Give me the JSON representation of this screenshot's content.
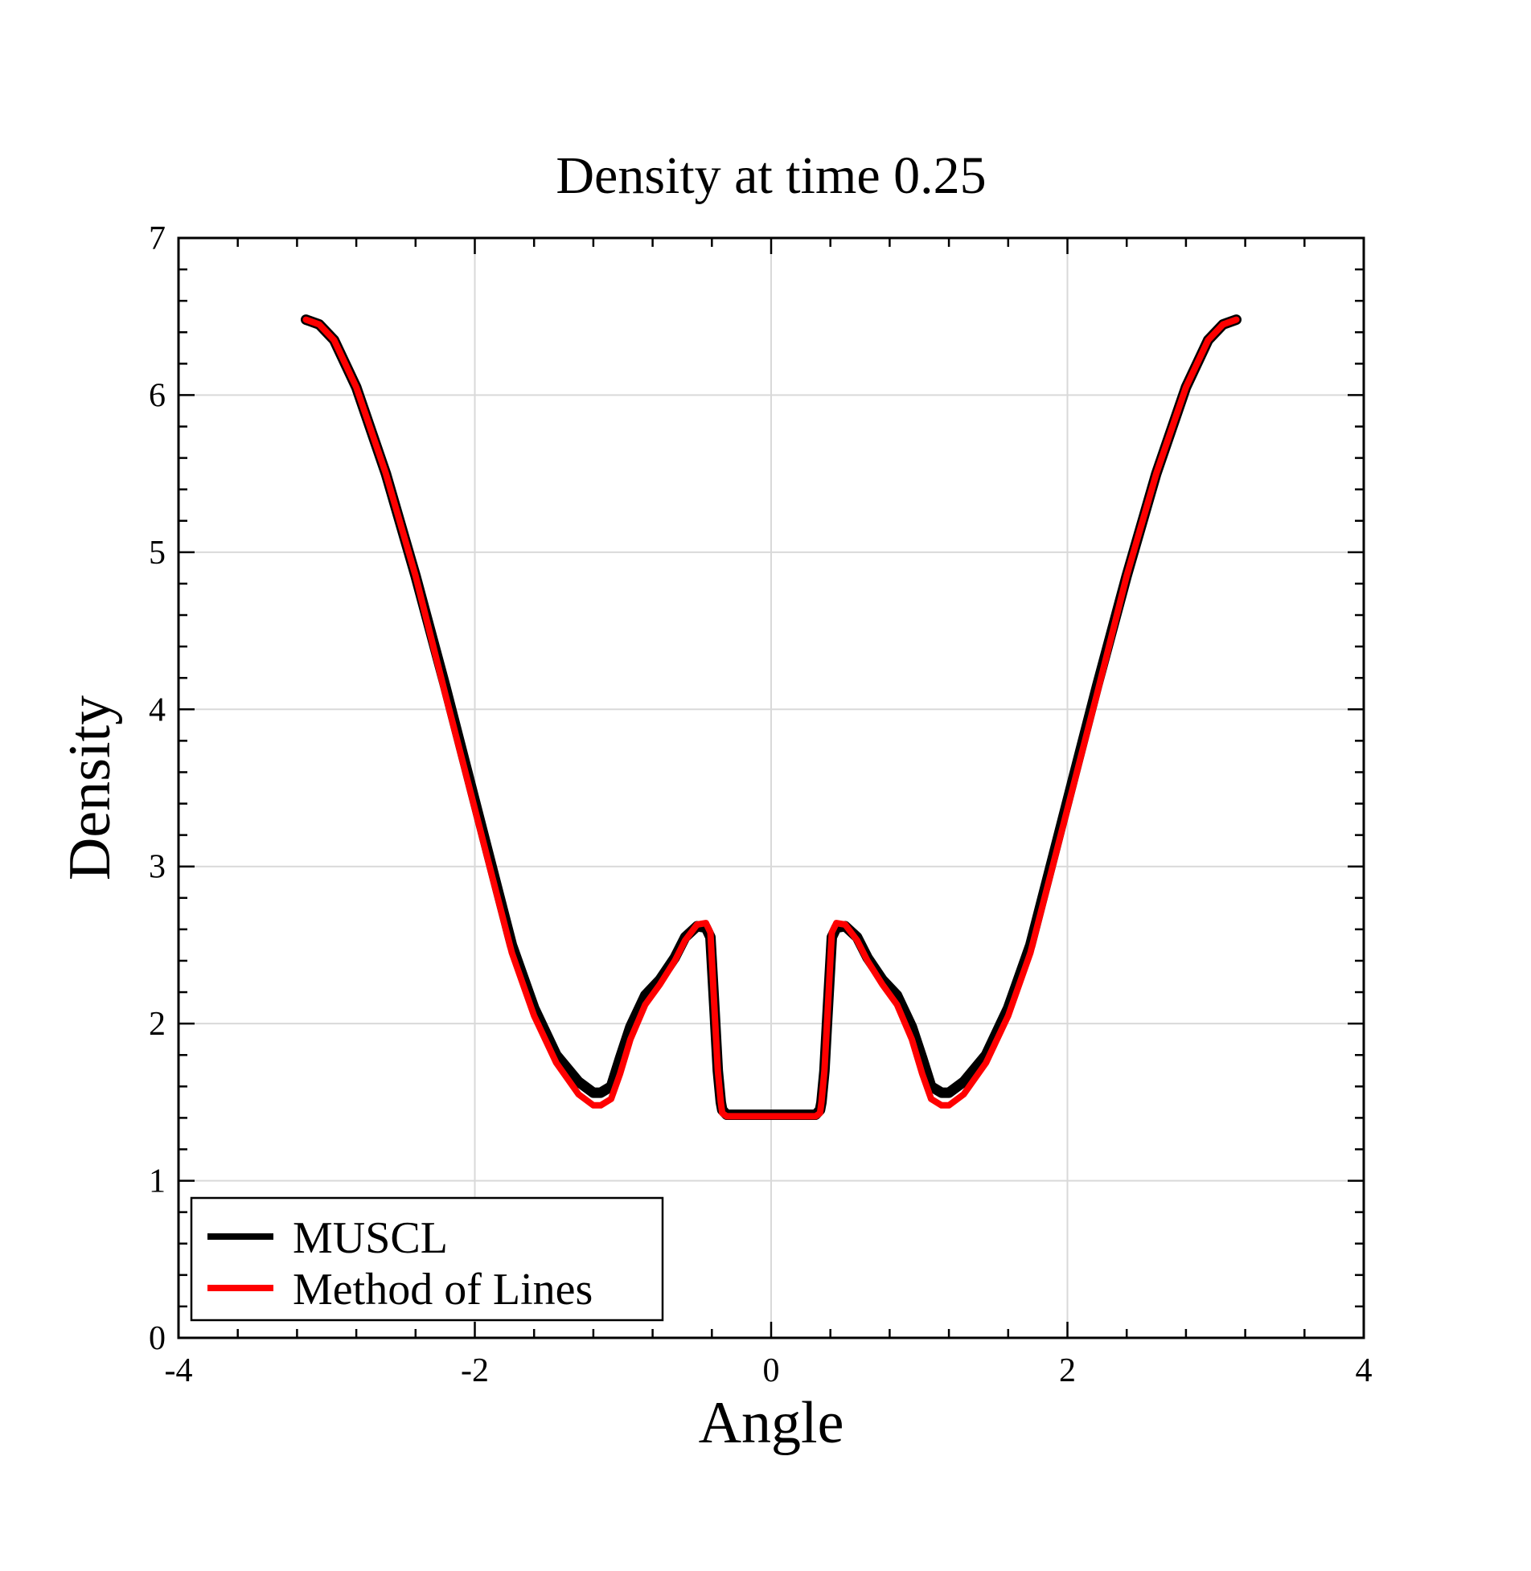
{
  "chart_data": {
    "type": "line",
    "title": "Density at time 0.25",
    "xlabel": "Angle",
    "ylabel": "Density",
    "xlim": [
      -4,
      4
    ],
    "ylim": [
      0,
      7
    ],
    "x_major_ticks": [
      -4,
      -2,
      0,
      2,
      4
    ],
    "x_tick_labels": [
      "-4",
      "-2",
      "0",
      "2",
      "4"
    ],
    "y_major_ticks": [
      0,
      1,
      2,
      3,
      4,
      5,
      6,
      7
    ],
    "y_tick_labels": [
      "0",
      "1",
      "2",
      "3",
      "4",
      "5",
      "6",
      "7"
    ],
    "x_minor_step": 0.4,
    "y_minor_step": 0.2,
    "grid": true,
    "legend_position": "bottom-left",
    "series": [
      {
        "name": "MUSCL",
        "color": "#000000",
        "x": [
          -3.14,
          -3.05,
          -2.95,
          -2.8,
          -2.6,
          -2.4,
          -2.2,
          -2.05,
          -1.9,
          -1.75,
          -1.6,
          -1.45,
          -1.3,
          -1.2,
          -1.15,
          -1.08,
          -1.02,
          -0.95,
          -0.85,
          -0.75,
          -0.65,
          -0.58,
          -0.5,
          -0.44,
          -0.41,
          -0.38,
          -0.36,
          -0.34,
          -0.33,
          -0.3,
          -0.2,
          -0.1,
          0,
          0.1,
          0.2,
          0.3,
          0.33,
          0.34,
          0.36,
          0.38,
          0.41,
          0.44,
          0.5,
          0.58,
          0.65,
          0.75,
          0.85,
          0.95,
          1.02,
          1.08,
          1.15,
          1.2,
          1.3,
          1.45,
          1.6,
          1.75,
          1.9,
          2.05,
          2.2,
          2.4,
          2.6,
          2.8,
          2.95,
          3.05,
          3.14
        ],
        "y": [
          6.48,
          6.45,
          6.35,
          6.05,
          5.5,
          4.85,
          4.15,
          3.6,
          3.05,
          2.5,
          2.1,
          1.8,
          1.63,
          1.56,
          1.56,
          1.6,
          1.78,
          1.98,
          2.18,
          2.28,
          2.42,
          2.55,
          2.62,
          2.61,
          2.55,
          2.05,
          1.7,
          1.5,
          1.45,
          1.42,
          1.42,
          1.42,
          1.42,
          1.42,
          1.42,
          1.42,
          1.45,
          1.5,
          1.7,
          2.05,
          2.55,
          2.61,
          2.62,
          2.55,
          2.42,
          2.28,
          2.18,
          1.98,
          1.78,
          1.6,
          1.56,
          1.56,
          1.63,
          1.8,
          2.1,
          2.5,
          3.05,
          3.6,
          4.15,
          4.85,
          5.5,
          6.05,
          6.35,
          6.45,
          6.48
        ]
      },
      {
        "name": "Method of Lines",
        "color": "#ff0000",
        "x": [
          -3.14,
          -3.05,
          -2.95,
          -2.8,
          -2.6,
          -2.4,
          -2.2,
          -2.05,
          -1.9,
          -1.75,
          -1.6,
          -1.45,
          -1.3,
          -1.2,
          -1.15,
          -1.08,
          -1.02,
          -0.95,
          -0.85,
          -0.75,
          -0.65,
          -0.58,
          -0.5,
          -0.44,
          -0.41,
          -0.38,
          -0.36,
          -0.34,
          -0.33,
          -0.3,
          -0.2,
          -0.1,
          0,
          0.1,
          0.2,
          0.3,
          0.33,
          0.34,
          0.36,
          0.38,
          0.41,
          0.44,
          0.5,
          0.58,
          0.65,
          0.75,
          0.85,
          0.95,
          1.02,
          1.08,
          1.15,
          1.2,
          1.3,
          1.45,
          1.6,
          1.75,
          1.9,
          2.05,
          2.2,
          2.4,
          2.6,
          2.8,
          2.95,
          3.05,
          3.14
        ],
        "y": [
          6.48,
          6.45,
          6.35,
          6.05,
          5.5,
          4.85,
          4.1,
          3.55,
          3.0,
          2.45,
          2.05,
          1.75,
          1.55,
          1.48,
          1.48,
          1.52,
          1.68,
          1.9,
          2.12,
          2.25,
          2.4,
          2.53,
          2.63,
          2.64,
          2.58,
          2.05,
          1.7,
          1.5,
          1.43,
          1.41,
          1.41,
          1.41,
          1.41,
          1.41,
          1.41,
          1.41,
          1.43,
          1.5,
          1.7,
          2.05,
          2.58,
          2.64,
          2.63,
          2.53,
          2.4,
          2.25,
          2.12,
          1.9,
          1.68,
          1.52,
          1.48,
          1.48,
          1.55,
          1.75,
          2.05,
          2.45,
          3.0,
          3.55,
          4.1,
          4.85,
          5.5,
          6.05,
          6.35,
          6.45,
          6.48
        ]
      }
    ]
  }
}
